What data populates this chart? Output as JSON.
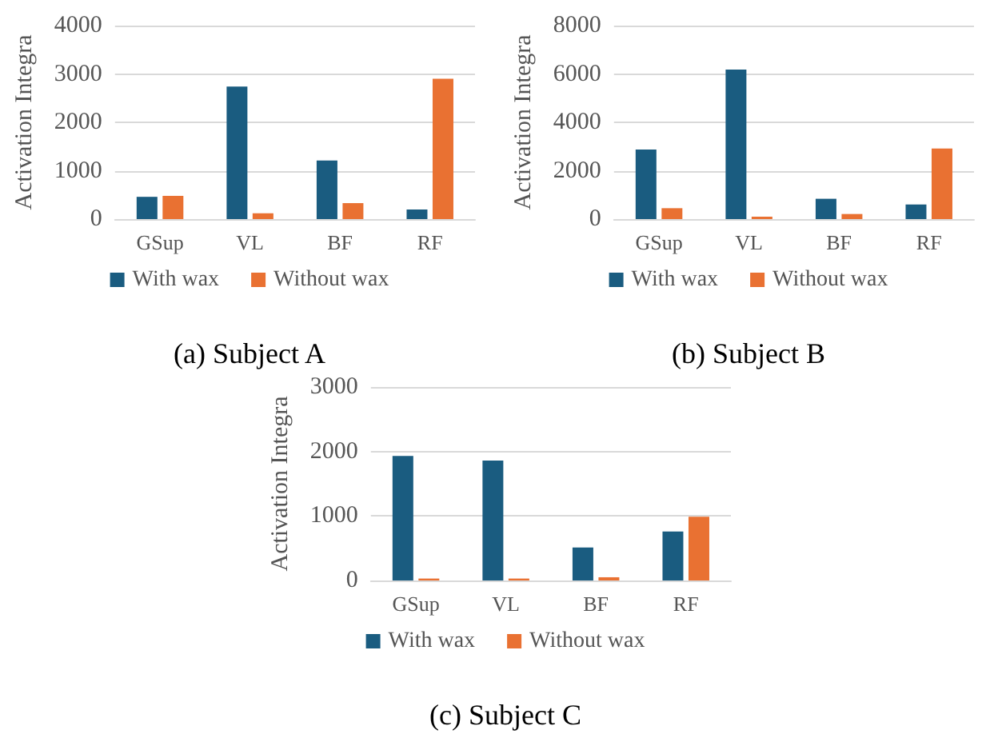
{
  "chart_data": [
    {
      "type": "bar",
      "title": "(a) Subject A",
      "ylabel": "Activation Integra",
      "categories": [
        "GSup",
        "VL",
        "BF",
        "RF"
      ],
      "series": [
        {
          "name": "With wax",
          "color": "#1a5c80",
          "values": [
            460,
            2740,
            1210,
            200
          ]
        },
        {
          "name": "Without wax",
          "color": "#e97132",
          "values": [
            480,
            120,
            330,
            2900
          ]
        }
      ],
      "ylim": [
        0,
        4000
      ],
      "yticks": [
        0,
        1000,
        2000,
        3000,
        4000
      ],
      "grid": "y",
      "legend": "bottom"
    },
    {
      "type": "bar",
      "title": "(b) Subject B",
      "ylabel": "Activation Integra",
      "categories": [
        "GSup",
        "VL",
        "BF",
        "RF"
      ],
      "series": [
        {
          "name": "With wax",
          "color": "#1a5c80",
          "values": [
            2880,
            6180,
            840,
            600
          ]
        },
        {
          "name": "Without wax",
          "color": "#e97132",
          "values": [
            450,
            100,
            210,
            2920
          ]
        }
      ],
      "ylim": [
        0,
        8000
      ],
      "yticks": [
        0,
        2000,
        4000,
        6000,
        8000
      ],
      "grid": "y",
      "legend": "bottom"
    },
    {
      "type": "bar",
      "title": "(c) Subject C",
      "ylabel": "Activation Integra",
      "categories": [
        "GSup",
        "VL",
        "BF",
        "RF"
      ],
      "series": [
        {
          "name": "With wax",
          "color": "#1a5c80",
          "values": [
            1930,
            1860,
            510,
            760
          ]
        },
        {
          "name": "Without wax",
          "color": "#e97132",
          "values": [
            30,
            30,
            50,
            990
          ]
        }
      ],
      "ylim": [
        0,
        3000
      ],
      "yticks": [
        0,
        1000,
        2000,
        3000
      ],
      "grid": "y",
      "legend": "bottom"
    }
  ]
}
